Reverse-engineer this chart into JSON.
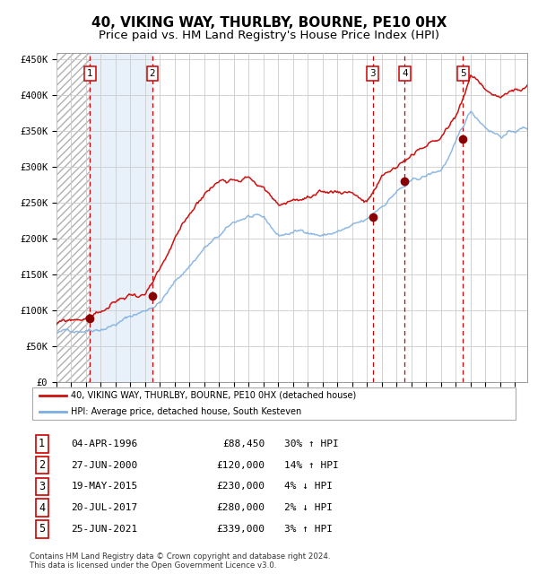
{
  "title": "40, VIKING WAY, THURLBY, BOURNE, PE10 0HX",
  "subtitle": "Price paid vs. HM Land Registry's House Price Index (HPI)",
  "ylim": [
    0,
    460000
  ],
  "xlim_start": 1994.0,
  "xlim_end": 2025.83,
  "yticks": [
    0,
    50000,
    100000,
    150000,
    200000,
    250000,
    300000,
    350000,
    400000,
    450000
  ],
  "ytick_labels": [
    "£0",
    "£50K",
    "£100K",
    "£150K",
    "£200K",
    "£250K",
    "£300K",
    "£350K",
    "£400K",
    "£450K"
  ],
  "sale_dates_x": [
    1996.27,
    2000.49,
    2015.38,
    2017.55,
    2021.49
  ],
  "sale_prices_y": [
    88450,
    120000,
    230000,
    280000,
    339000
  ],
  "sale_labels": [
    "1",
    "2",
    "3",
    "4",
    "5"
  ],
  "sale_label_dates": [
    "04-APR-1996",
    "27-JUN-2000",
    "19-MAY-2015",
    "20-JUL-2017",
    "25-JUN-2021"
  ],
  "sale_label_prices": [
    "£88,450",
    "£120,000",
    "£230,000",
    "£280,000",
    "£339,000"
  ],
  "sale_label_hpi": [
    "30% ↑ HPI",
    "14% ↑ HPI",
    "4% ↓ HPI",
    "2% ↓ HPI",
    "3% ↑ HPI"
  ],
  "vline_color": "#cc0000",
  "sale_marker_color": "#880000",
  "hpi_line_color": "#7aade0",
  "price_line_color": "#cc1111",
  "shaded_region_color": "#ddeeff",
  "grid_color": "#cccccc",
  "legend_line1": "40, VIKING WAY, THURLBY, BOURNE, PE10 0HX (detached house)",
  "legend_line2": "HPI: Average price, detached house, South Kesteven",
  "footer_text": "Contains HM Land Registry data © Crown copyright and database right 2024.\nThis data is licensed under the Open Government Licence v3.0.",
  "title_fontsize": 11,
  "subtitle_fontsize": 9.5
}
